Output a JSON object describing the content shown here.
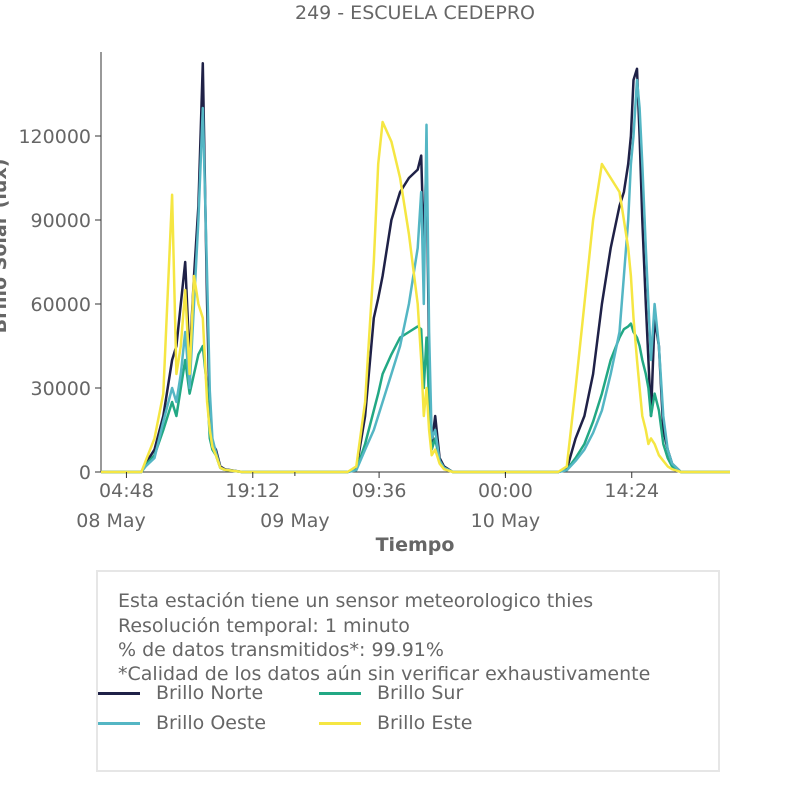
{
  "title": "249 - ESCUELA CEDEPRO",
  "info": {
    "line1": "Esta estación tiene un sensor meteorologico thies",
    "line2": "Resolución temporal: 1 minuto",
    "line3": "% de datos transmitidos*: 99.91%",
    "line4": "*Calidad de los datos aún sin verificar exhaustivamente"
  },
  "chart_data": {
    "type": "line",
    "title": "249 - ESCUELA CEDEPRO",
    "xlabel": "Tiempo",
    "ylabel": "Brillo Solar (lux)",
    "x_unit": "hours since 08 May 00:00",
    "xlim": [
      1.9,
      73.6
    ],
    "ylim": [
      0,
      150000
    ],
    "yticks": [
      0,
      30000,
      60000,
      90000,
      120000
    ],
    "ytick_labels": [
      "0",
      "30000",
      "60000",
      "90000",
      "120000"
    ],
    "xticks": [
      {
        "hour": 4.8,
        "label": "04:48"
      },
      {
        "hour": 19.2,
        "label": "19:12"
      },
      {
        "hour": 33.6,
        "label": "09:36"
      },
      {
        "hour": 48.0,
        "label": "00:00"
      },
      {
        "hour": 62.4,
        "label": "14:24"
      }
    ],
    "date_labels": [
      {
        "hour": 0,
        "label": "08 May"
      },
      {
        "hour": 24,
        "label": "09 May"
      },
      {
        "hour": 48,
        "label": "10 May"
      }
    ],
    "grid": false,
    "legend_position": "bottom",
    "series": [
      {
        "name": "Brillo Norte",
        "color": "#1f2147",
        "x": [
          1.9,
          6.5,
          7.0,
          8.0,
          9.0,
          10.0,
          10.5,
          11.0,
          11.5,
          12.0,
          12.5,
          13.0,
          13.5,
          14.0,
          14.3,
          14.6,
          15.0,
          15.5,
          16.0,
          17.0,
          18.0,
          25.0,
          30.0,
          31.0,
          32.0,
          33.0,
          33.5,
          34.0,
          35.0,
          36.0,
          37.0,
          38.0,
          38.4,
          38.7,
          39.0,
          39.3,
          39.6,
          40.0,
          40.5,
          41.0,
          42.0,
          44.0,
          50.0,
          54.0,
          55.0,
          56.0,
          57.0,
          58.0,
          59.0,
          60.0,
          61.0,
          61.5,
          62.0,
          62.3,
          62.6,
          63.0,
          63.3,
          63.6,
          64.0,
          64.3,
          64.6,
          65.0,
          65.5,
          66.0,
          66.5,
          67.0,
          68.0,
          73.6
        ],
        "y": [
          0,
          0,
          3000,
          8000,
          20000,
          40000,
          45000,
          60000,
          75000,
          40000,
          70000,
          95000,
          146000,
          60000,
          20000,
          10000,
          8000,
          2000,
          1000,
          500,
          0,
          0,
          0,
          1000,
          20000,
          55000,
          62000,
          70000,
          90000,
          100000,
          105000,
          108000,
          113000,
          80000,
          112000,
          40000,
          10000,
          20000,
          5000,
          2000,
          0,
          0,
          0,
          0,
          1000,
          12000,
          20000,
          35000,
          60000,
          80000,
          95000,
          100000,
          110000,
          120000,
          140000,
          144000,
          120000,
          90000,
          60000,
          40000,
          20000,
          55000,
          45000,
          15000,
          8000,
          3000,
          0,
          0
        ]
      },
      {
        "name": "Brillo Sur",
        "color": "#22a884",
        "x": [
          1.9,
          6.5,
          7.0,
          8.0,
          9.0,
          10.0,
          10.5,
          11.0,
          11.5,
          12.0,
          12.5,
          13.0,
          13.5,
          14.0,
          14.3,
          14.6,
          15.0,
          15.5,
          16.0,
          17.0,
          18.0,
          25.0,
          30.0,
          31.0,
          32.0,
          33.0,
          33.5,
          34.0,
          35.0,
          36.0,
          37.0,
          38.0,
          38.4,
          38.7,
          39.0,
          39.3,
          39.6,
          40.0,
          40.5,
          41.0,
          42.0,
          44.0,
          50.0,
          54.0,
          55.0,
          56.0,
          57.0,
          58.0,
          59.0,
          60.0,
          61.0,
          61.5,
          62.0,
          62.3,
          62.6,
          63.0,
          63.3,
          63.6,
          64.0,
          64.3,
          64.6,
          65.0,
          65.5,
          66.0,
          66.5,
          67.0,
          68.0,
          73.6
        ],
        "y": [
          0,
          0,
          2500,
          6000,
          15000,
          25000,
          20000,
          30000,
          40000,
          28000,
          35000,
          42000,
          45000,
          30000,
          12000,
          8000,
          6000,
          1500,
          800,
          400,
          0,
          0,
          0,
          800,
          10000,
          22000,
          28000,
          35000,
          42000,
          48000,
          50000,
          52000,
          51000,
          30000,
          48000,
          25000,
          8000,
          12000,
          4000,
          1500,
          0,
          0,
          0,
          0,
          800,
          5000,
          10000,
          18000,
          28000,
          40000,
          48000,
          51000,
          52000,
          53000,
          50000,
          48000,
          45000,
          40000,
          35000,
          30000,
          20000,
          28000,
          22000,
          10000,
          5000,
          2000,
          0,
          0
        ]
      },
      {
        "name": "Brillo Oeste",
        "color": "#54b6c4",
        "x": [
          1.9,
          6.5,
          7.0,
          8.0,
          9.0,
          10.0,
          10.5,
          11.0,
          11.5,
          12.0,
          12.5,
          13.0,
          13.5,
          14.0,
          14.3,
          14.6,
          15.0,
          15.5,
          16.0,
          17.0,
          18.0,
          25.0,
          30.0,
          31.0,
          32.0,
          33.0,
          33.5,
          34.0,
          35.0,
          36.0,
          37.0,
          38.0,
          38.4,
          38.7,
          39.0,
          39.3,
          39.6,
          40.0,
          40.5,
          41.0,
          42.0,
          44.0,
          50.0,
          54.0,
          55.0,
          56.0,
          57.0,
          58.0,
          59.0,
          60.0,
          61.0,
          61.5,
          62.0,
          62.3,
          62.6,
          63.0,
          63.3,
          63.6,
          64.0,
          64.3,
          64.6,
          65.0,
          65.5,
          66.0,
          66.5,
          67.0,
          68.0,
          73.6
        ],
        "y": [
          0,
          0,
          2000,
          5000,
          18000,
          30000,
          25000,
          35000,
          50000,
          30000,
          60000,
          90000,
          130000,
          70000,
          29000,
          12000,
          7000,
          1500,
          800,
          400,
          0,
          0,
          0,
          600,
          8000,
          15000,
          20000,
          25000,
          35000,
          45000,
          60000,
          80000,
          100000,
          60000,
          124000,
          50000,
          12000,
          15000,
          4000,
          1500,
          0,
          0,
          0,
          0,
          600,
          4000,
          8000,
          14000,
          22000,
          35000,
          50000,
          70000,
          90000,
          110000,
          120000,
          140000,
          130000,
          110000,
          80000,
          60000,
          40000,
          60000,
          45000,
          20000,
          8000,
          3000,
          0,
          0
        ]
      },
      {
        "name": "Brillo Este",
        "color": "#f5e642",
        "x": [
          1.9,
          6.5,
          7.0,
          8.0,
          9.0,
          10.0,
          10.5,
          11.0,
          11.5,
          12.0,
          12.5,
          13.0,
          13.5,
          14.0,
          14.3,
          14.6,
          15.0,
          15.5,
          16.0,
          17.0,
          18.0,
          25.0,
          30.0,
          31.0,
          32.0,
          33.0,
          33.5,
          34.0,
          35.0,
          36.0,
          37.0,
          38.0,
          38.4,
          38.7,
          39.0,
          39.3,
          39.6,
          40.0,
          40.5,
          41.0,
          42.0,
          44.0,
          50.0,
          54.0,
          55.0,
          56.0,
          57.0,
          58.0,
          59.0,
          60.0,
          61.0,
          61.5,
          62.0,
          62.3,
          62.6,
          63.0,
          63.3,
          63.6,
          64.0,
          64.3,
          64.6,
          65.0,
          65.5,
          66.0,
          66.5,
          67.0,
          68.0,
          73.6
        ],
        "y": [
          0,
          0,
          4000,
          12000,
          28000,
          99000,
          35000,
          45000,
          65000,
          35000,
          70000,
          60000,
          55000,
          25000,
          15000,
          9000,
          6000,
          1500,
          800,
          400,
          0,
          0,
          0,
          2000,
          25000,
          75000,
          110000,
          125000,
          118000,
          105000,
          85000,
          60000,
          40000,
          20000,
          30000,
          15000,
          6000,
          8000,
          3000,
          1000,
          0,
          0,
          0,
          0,
          2000,
          30000,
          60000,
          90000,
          110000,
          105000,
          100000,
          90000,
          80000,
          70000,
          55000,
          40000,
          30000,
          20000,
          15000,
          10000,
          12000,
          10000,
          6000,
          4000,
          2000,
          1000,
          0,
          0
        ]
      }
    ]
  }
}
